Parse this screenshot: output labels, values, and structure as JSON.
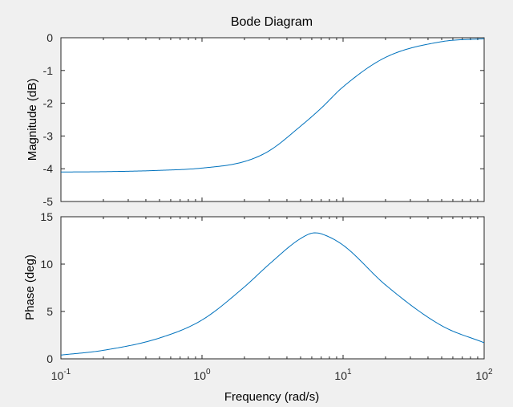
{
  "chart_data": {
    "type": "line",
    "title": "Bode Diagram",
    "xlabel": "Frequency  (rad/s)",
    "xscale": "log",
    "xlim": [
      0.1,
      100
    ],
    "x_ticks": [
      0.1,
      1,
      10,
      100
    ],
    "x_tick_labels": [
      {
        "base": "10",
        "exp": "-1"
      },
      {
        "base": "10",
        "exp": "0"
      },
      {
        "base": "10",
        "exp": "1"
      },
      {
        "base": "10",
        "exp": "2"
      }
    ],
    "line_color": "#0072bd",
    "grid": false,
    "panels": [
      {
        "name": "magnitude",
        "ylabel": "Magnitude (dB)",
        "ylim": [
          -5,
          0
        ],
        "y_ticks": [
          0,
          -1,
          -2,
          -3,
          -4,
          -5
        ],
        "x": [
          0.1,
          0.2,
          0.5,
          1,
          2,
          3,
          5,
          7,
          10,
          20,
          50,
          100
        ],
        "y": [
          -4.1,
          -4.09,
          -4.05,
          -3.98,
          -3.78,
          -3.45,
          -2.7,
          -2.15,
          -1.5,
          -0.6,
          -0.12,
          -0.03
        ]
      },
      {
        "name": "phase",
        "ylabel": "Phase (deg)",
        "ylim": [
          0,
          15
        ],
        "y_ticks": [
          0,
          5,
          10,
          15
        ],
        "x": [
          0.1,
          0.2,
          0.5,
          1,
          2,
          3,
          5,
          6.3,
          7,
          10,
          20,
          50,
          100
        ],
        "y": [
          0.4,
          0.9,
          2.2,
          4.1,
          7.6,
          10.0,
          12.7,
          13.3,
          13.2,
          12.0,
          7.8,
          3.5,
          1.7
        ]
      }
    ]
  }
}
